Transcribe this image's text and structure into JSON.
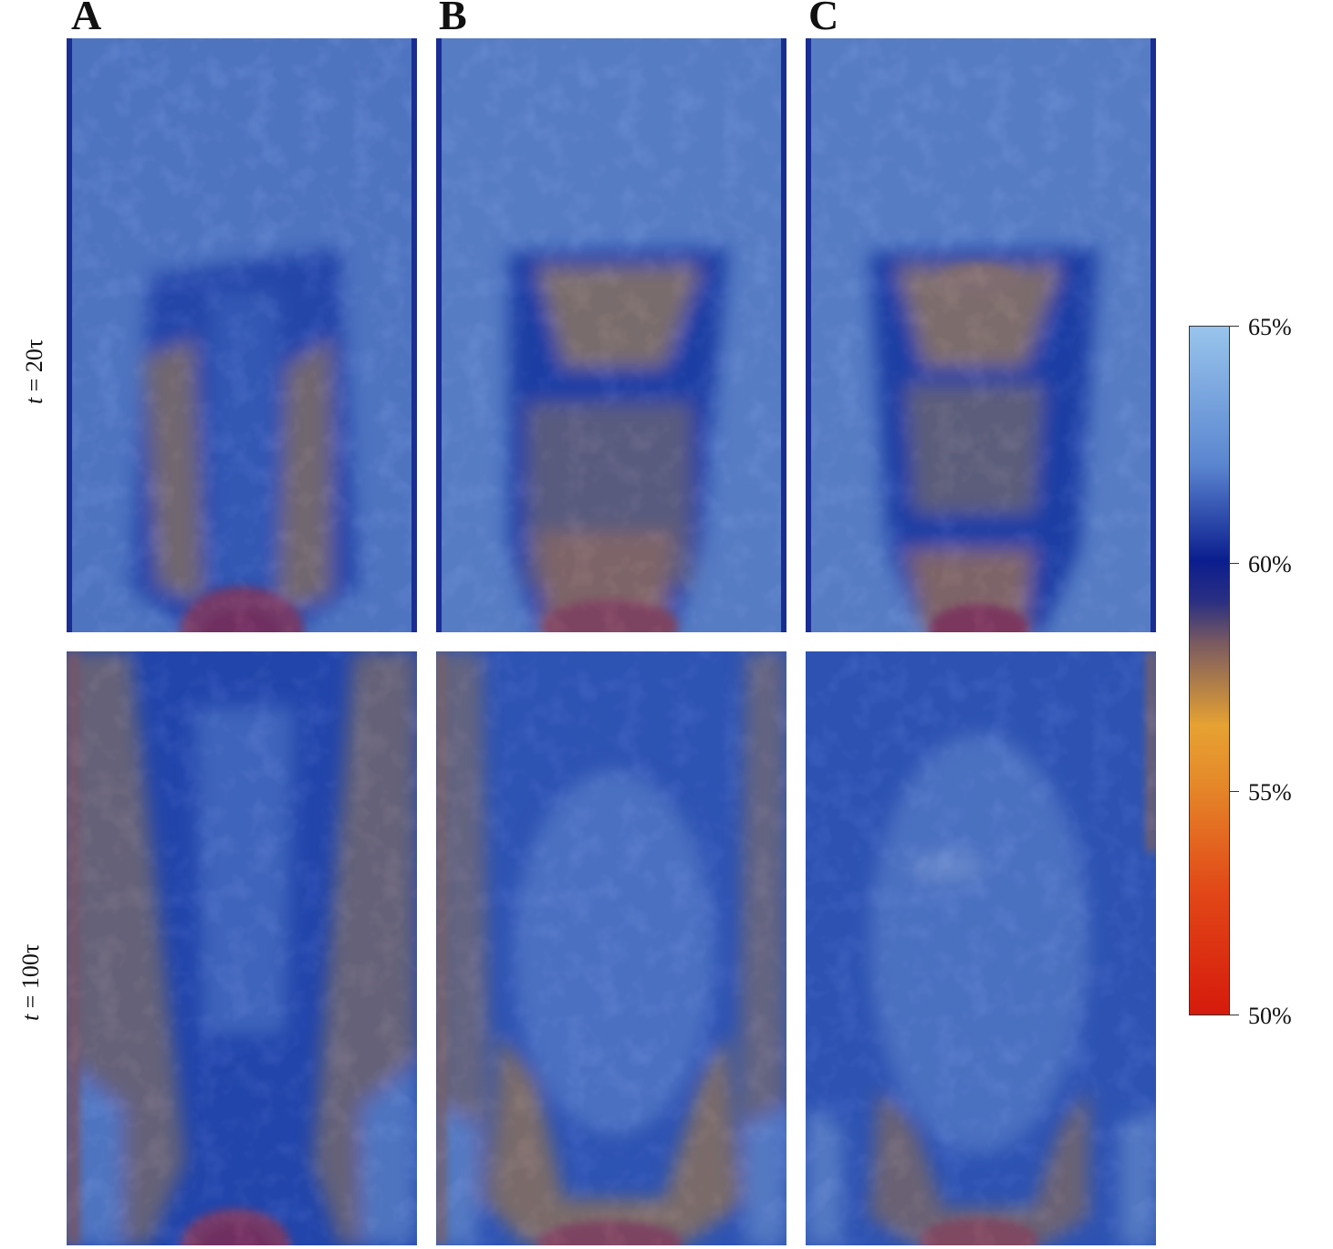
{
  "column_labels": [
    "A",
    "B",
    "C"
  ],
  "row_labels": [
    {
      "var": "t",
      "text": " = 20τ"
    },
    {
      "var": "t",
      "text": " = 100τ"
    }
  ],
  "colorbar": {
    "ticks": [
      "65%",
      "60%",
      "55%",
      "50%"
    ],
    "colors": {
      "high": "#98c4ec",
      "mid": "#0b1d8e",
      "orange": "#e6a232",
      "low": "#d61a0c"
    }
  },
  "panels": [
    {
      "column": "A",
      "row": "t = 20τ"
    },
    {
      "column": "B",
      "row": "t = 20τ"
    },
    {
      "column": "C",
      "row": "t = 20τ"
    },
    {
      "column": "A",
      "row": "t = 100τ"
    },
    {
      "column": "B",
      "row": "t = 100τ"
    },
    {
      "column": "C",
      "row": "t = 100τ"
    }
  ]
}
